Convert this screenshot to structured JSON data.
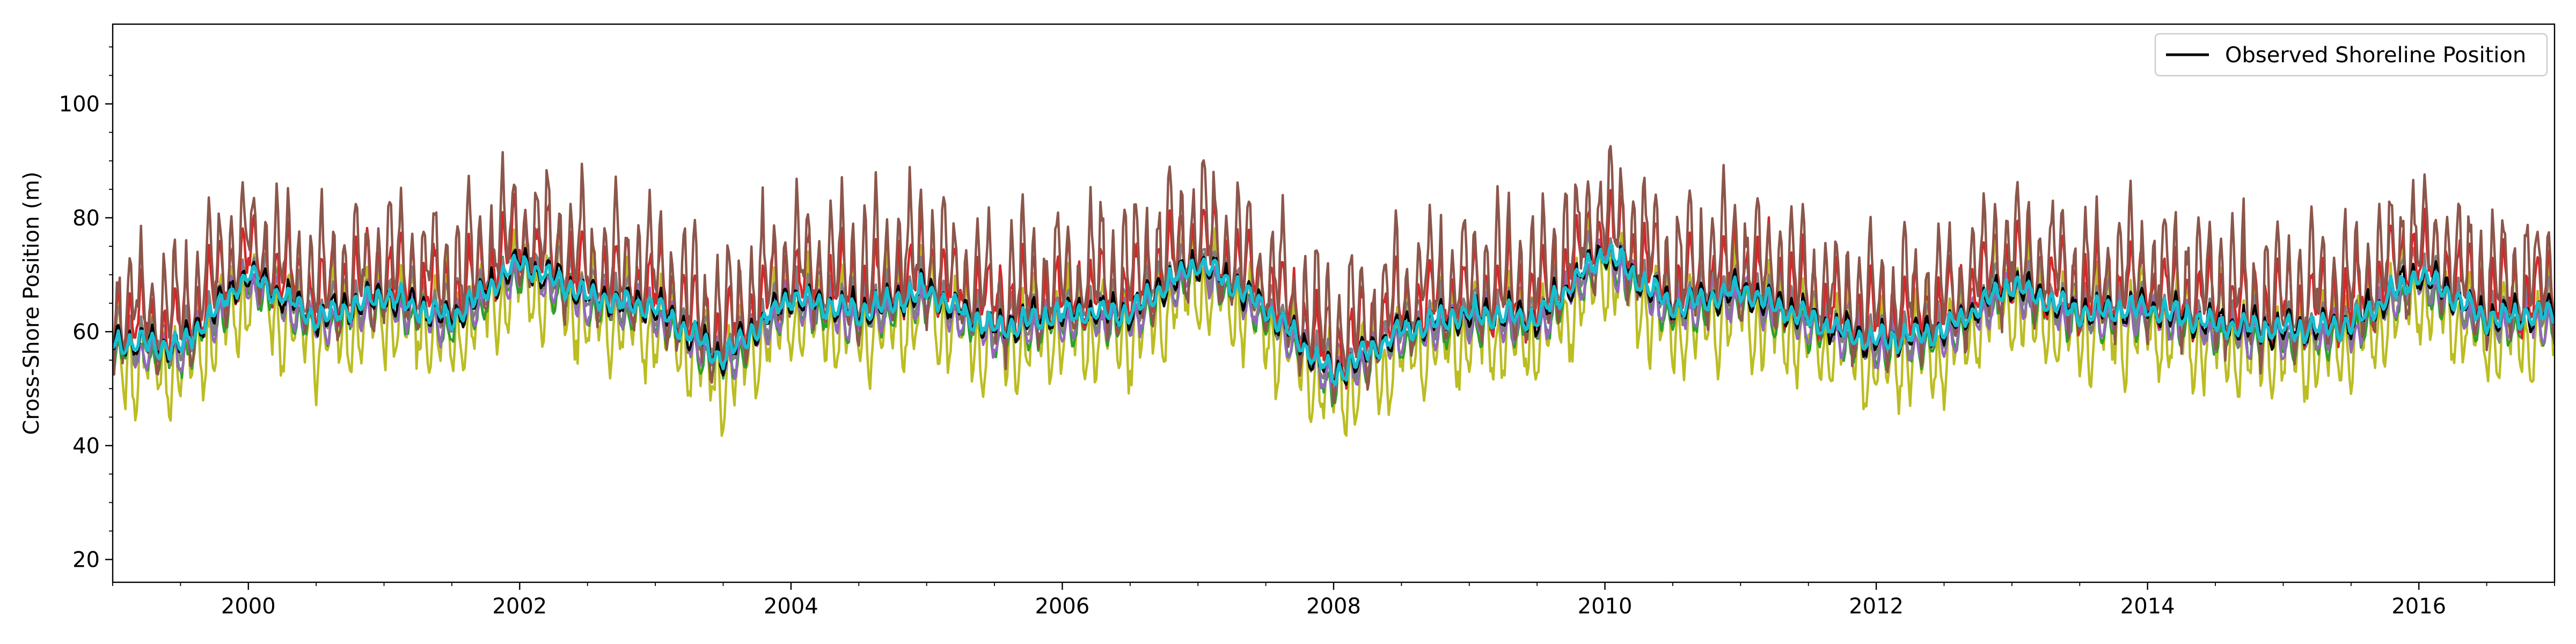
{
  "chart_data": {
    "type": "line",
    "title": "",
    "xlabel": "",
    "ylabel": "Cross-Shore Position (m)",
    "xlim": [
      1999.0,
      2017.0
    ],
    "ylim": [
      16,
      114
    ],
    "x_ticks": [
      2000,
      2002,
      2004,
      2006,
      2008,
      2010,
      2012,
      2014,
      2016
    ],
    "x_tick_labels": [
      "2000",
      "2002",
      "2004",
      "2006",
      "2008",
      "2010",
      "2012",
      "2014",
      "2016"
    ],
    "y_ticks": [
      20,
      40,
      60,
      80,
      100
    ],
    "y_tick_labels": [
      "20",
      "40",
      "60",
      "80",
      "100"
    ],
    "x_minor_step": 0.5,
    "y_minor_step": 5,
    "grid": false,
    "legend": {
      "position": "top-right",
      "entries": [
        "Observed Shoreline Position"
      ]
    },
    "series": [
      {
        "name": "Observed Shoreline Position",
        "color": "#000000",
        "role": "observed",
        "amplitude": 4,
        "baseline_offset": 0,
        "x": [
          1999.0,
          1999.5,
          2000.0,
          2000.5,
          2001.0,
          2001.5,
          2002.0,
          2002.5,
          2003.0,
          2003.5,
          2004.0,
          2004.5,
          2005.0,
          2005.5,
          2006.0,
          2006.5,
          2007.0,
          2007.5,
          2008.0,
          2008.5,
          2009.0,
          2009.5,
          2010.0,
          2010.5,
          2011.0,
          2011.5,
          2012.0,
          2012.5,
          2013.0,
          2013.5,
          2014.0,
          2014.5,
          2015.0,
          2015.5,
          2016.0,
          2016.5,
          2017.0
        ],
        "values": [
          58,
          57,
          70,
          62,
          66,
          62,
          72,
          66,
          64,
          55,
          66,
          63,
          67,
          60,
          63,
          63,
          72,
          64,
          52,
          60,
          63,
          62,
          74,
          64,
          67,
          62,
          58,
          60,
          68,
          63,
          64,
          61,
          60,
          61,
          70,
          62,
          63
        ]
      },
      {
        "color": "#d62728",
        "role": "ensemble",
        "amplitude": 10,
        "baseline_offset": 8
      },
      {
        "color": "#8c564b",
        "role": "ensemble",
        "amplitude": 16,
        "baseline_offset": 12
      },
      {
        "color": "#2ca02c",
        "role": "ensemble",
        "amplitude": 5,
        "baseline_offset": -4
      },
      {
        "color": "#9467bd",
        "role": "ensemble",
        "amplitude": 5,
        "baseline_offset": -3
      },
      {
        "color": "#7f7f7f",
        "role": "ensemble",
        "amplitude": 6,
        "baseline_offset": 2
      },
      {
        "color": "#bcbd22",
        "role": "ensemble",
        "amplitude": 13,
        "baseline_offset": -9
      },
      {
        "color": "#17becf",
        "role": "ensemble",
        "amplitude": 3,
        "baseline_offset": 0
      }
    ]
  }
}
